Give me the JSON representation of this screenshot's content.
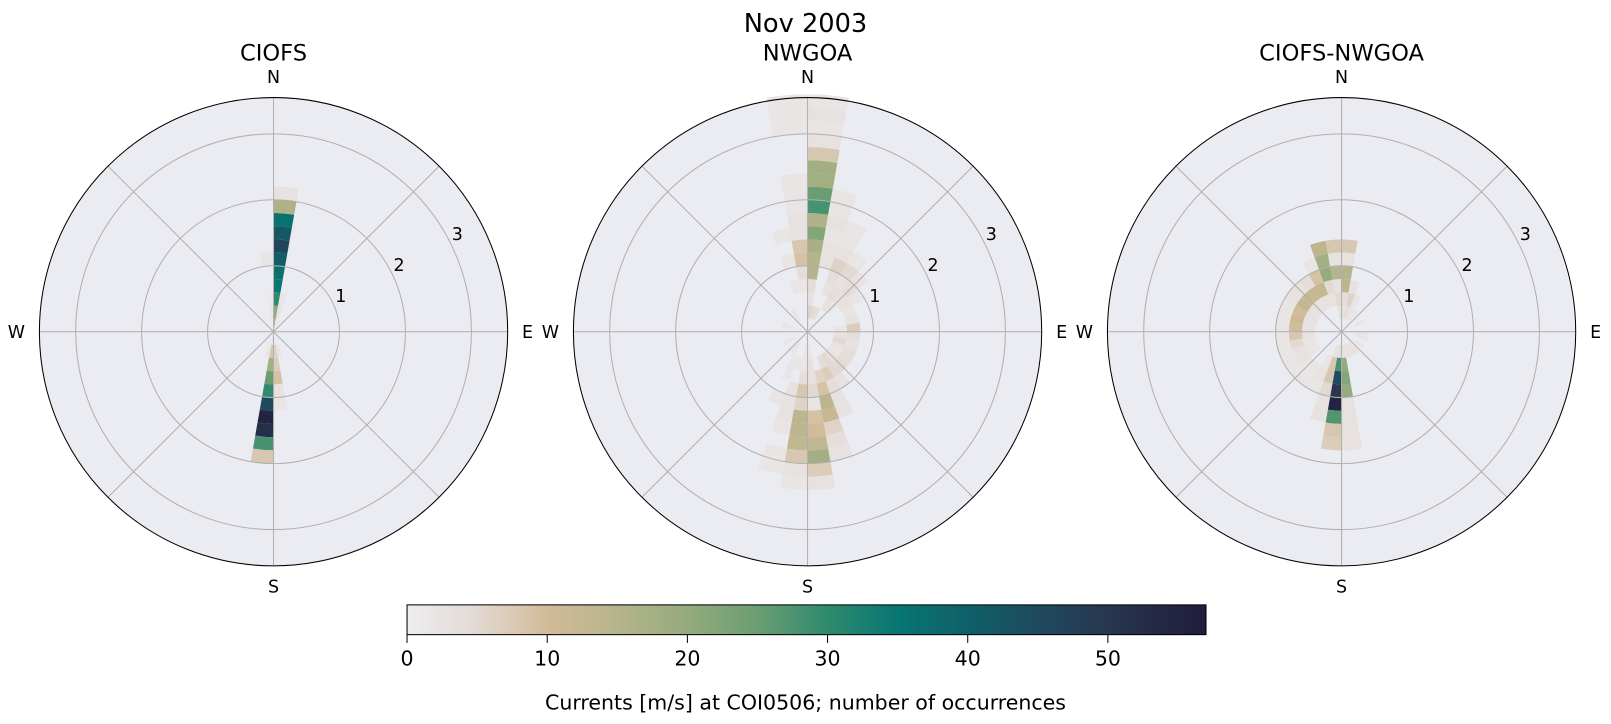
{
  "suptitle": "Nov 2003",
  "colormap": {
    "vmin": 0,
    "vmax": 57,
    "stops": [
      [
        0,
        "#eeedf0"
      ],
      [
        5,
        "#e2d9d3"
      ],
      [
        10,
        "#d2bb98"
      ],
      [
        15,
        "#b6b48c"
      ],
      [
        20,
        "#94ab7d"
      ],
      [
        25,
        "#6a9e72"
      ],
      [
        30,
        "#2f8a6e"
      ],
      [
        35,
        "#087672"
      ],
      [
        40,
        "#0f6068"
      ],
      [
        45,
        "#1e4a5e"
      ],
      [
        50,
        "#283650"
      ],
      [
        57,
        "#201d3b"
      ]
    ],
    "ticks": [
      "0",
      "10",
      "20",
      "30",
      "40",
      "50"
    ],
    "label": "Currents [m/s] at COI0506; number of occurrences"
  },
  "chart_data": [
    {
      "type": "polar-histogram",
      "title": "CIOFS",
      "compass": {
        "n": "N",
        "e": "E",
        "s": "S",
        "w": "W"
      },
      "radial_ticks": [
        "1",
        "2",
        "3"
      ],
      "rlim": [
        0,
        3.55
      ],
      "grid": true,
      "background": "#ebebf2",
      "direction_bin_deg": 10,
      "speed_bin": 0.2,
      "cells_fields": [
        "direction_deg",
        "speed_start",
        "count"
      ],
      "cells": [
        [
          0,
          0.0,
          15
        ],
        [
          0,
          0.2,
          20
        ],
        [
          0,
          0.4,
          30
        ],
        [
          0,
          0.6,
          35
        ],
        [
          0,
          0.8,
          36
        ],
        [
          0,
          1.0,
          41
        ],
        [
          0,
          1.2,
          46
        ],
        [
          0,
          1.4,
          42
        ],
        [
          0,
          1.6,
          36
        ],
        [
          0,
          1.8,
          16
        ],
        [
          0,
          2.0,
          3
        ],
        [
          350,
          1.0,
          2
        ],
        [
          350,
          0.2,
          2
        ],
        [
          10,
          0.4,
          2
        ],
        [
          10,
          0.2,
          3
        ],
        [
          350,
          0.4,
          1
        ],
        [
          180,
          0.0,
          3
        ],
        [
          180,
          0.2,
          8
        ],
        [
          180,
          0.4,
          18
        ],
        [
          180,
          0.6,
          25
        ],
        [
          180,
          0.8,
          30
        ],
        [
          180,
          1.0,
          45
        ],
        [
          180,
          1.2,
          55
        ],
        [
          180,
          1.4,
          52
        ],
        [
          180,
          1.6,
          28
        ],
        [
          180,
          1.8,
          8
        ],
        [
          170,
          0.2,
          6
        ],
        [
          170,
          0.4,
          7
        ],
        [
          170,
          0.6,
          9
        ],
        [
          170,
          0.8,
          3
        ],
        [
          170,
          1.0,
          2
        ],
        [
          190,
          0.2,
          2
        ],
        [
          160,
          0.2,
          2
        ],
        [
          20,
          0.0,
          2
        ]
      ]
    },
    {
      "type": "polar-histogram",
      "title": "NWGOA",
      "compass": {
        "n": "N",
        "e": "E",
        "s": "S",
        "w": "W"
      },
      "radial_ticks": [
        "1",
        "2",
        "3"
      ],
      "rlim": [
        0,
        3.55
      ],
      "grid": true,
      "background": "#ebebf2",
      "direction_bin_deg": 10,
      "speed_bin": 0.2,
      "cells_fields": [
        "direction_deg",
        "speed_start",
        "count"
      ],
      "cells": [
        [
          0,
          0.0,
          2
        ],
        [
          0,
          0.2,
          6
        ],
        [
          0,
          0.4,
          3
        ],
        [
          0,
          0.6,
          4
        ],
        [
          0,
          0.8,
          15
        ],
        [
          0,
          1.0,
          15
        ],
        [
          0,
          1.2,
          17
        ],
        [
          0,
          1.4,
          22
        ],
        [
          0,
          1.6,
          16
        ],
        [
          0,
          1.8,
          28
        ],
        [
          0,
          2.0,
          25
        ],
        [
          0,
          2.2,
          18
        ],
        [
          0,
          2.4,
          18
        ],
        [
          0,
          2.6,
          8
        ],
        [
          0,
          2.8,
          3
        ],
        [
          0,
          3.0,
          2
        ],
        [
          0,
          3.2,
          3
        ],
        [
          0,
          3.4,
          2
        ],
        [
          350,
          0.6,
          2
        ],
        [
          350,
          0.8,
          4
        ],
        [
          350,
          1.0,
          9
        ],
        [
          350,
          1.2,
          8
        ],
        [
          350,
          1.4,
          3
        ],
        [
          350,
          1.6,
          3
        ],
        [
          350,
          1.8,
          2
        ],
        [
          350,
          2.0,
          2
        ],
        [
          350,
          2.2,
          2
        ],
        [
          350,
          3.0,
          2
        ],
        [
          350,
          3.2,
          2
        ],
        [
          350,
          3.4,
          2
        ],
        [
          340,
          0.6,
          2
        ],
        [
          340,
          1.0,
          2
        ],
        [
          340,
          1.4,
          2
        ],
        [
          10,
          0.2,
          5
        ],
        [
          10,
          1.0,
          3
        ],
        [
          10,
          1.2,
          3
        ],
        [
          10,
          1.4,
          2
        ],
        [
          10,
          1.6,
          3
        ],
        [
          10,
          1.8,
          2
        ],
        [
          10,
          2.0,
          2
        ],
        [
          20,
          0.2,
          4
        ],
        [
          20,
          0.6,
          3
        ],
        [
          20,
          0.8,
          4
        ],
        [
          20,
          1.0,
          6
        ],
        [
          20,
          1.2,
          3
        ],
        [
          20,
          1.4,
          2
        ],
        [
          20,
          1.6,
          2
        ],
        [
          30,
          0.4,
          3
        ],
        [
          30,
          0.6,
          4
        ],
        [
          30,
          0.8,
          3
        ],
        [
          30,
          1.0,
          5
        ],
        [
          30,
          1.2,
          2
        ],
        [
          40,
          0.4,
          2
        ],
        [
          40,
          0.6,
          3
        ],
        [
          40,
          0.8,
          4
        ],
        [
          40,
          1.0,
          3
        ],
        [
          50,
          0.6,
          3
        ],
        [
          50,
          0.8,
          2
        ],
        [
          60,
          0.6,
          2
        ],
        [
          70,
          0.6,
          3
        ],
        [
          80,
          0.4,
          2
        ],
        [
          80,
          0.6,
          7
        ],
        [
          90,
          0.4,
          3
        ],
        [
          90,
          0.6,
          4
        ],
        [
          100,
          0.4,
          5
        ],
        [
          100,
          0.6,
          3
        ],
        [
          110,
          0.4,
          3
        ],
        [
          110,
          0.6,
          4
        ],
        [
          120,
          0.4,
          2
        ],
        [
          120,
          0.6,
          4
        ],
        [
          130,
          0.4,
          3
        ],
        [
          130,
          0.6,
          5
        ],
        [
          140,
          0.4,
          5
        ],
        [
          140,
          0.6,
          5
        ],
        [
          140,
          0.8,
          3
        ],
        [
          150,
          0.4,
          4
        ],
        [
          150,
          0.6,
          7
        ],
        [
          150,
          0.8,
          4
        ],
        [
          150,
          1.0,
          3
        ],
        [
          150,
          1.2,
          3
        ],
        [
          160,
          0.6,
          6
        ],
        [
          160,
          0.8,
          9
        ],
        [
          160,
          1.0,
          14
        ],
        [
          160,
          1.2,
          12
        ],
        [
          160,
          1.4,
          6
        ],
        [
          160,
          1.6,
          4
        ],
        [
          160,
          1.8,
          3
        ],
        [
          170,
          0.2,
          2
        ],
        [
          170,
          0.4,
          3
        ],
        [
          170,
          0.6,
          3
        ],
        [
          170,
          0.8,
          5
        ],
        [
          170,
          1.0,
          2
        ],
        [
          170,
          1.2,
          9
        ],
        [
          170,
          1.4,
          10
        ],
        [
          170,
          1.6,
          13
        ],
        [
          170,
          1.8,
          18
        ],
        [
          170,
          2.0,
          7
        ],
        [
          170,
          2.2,
          3
        ],
        [
          180,
          0.2,
          2
        ],
        [
          180,
          0.4,
          2
        ],
        [
          180,
          0.6,
          4
        ],
        [
          180,
          0.8,
          8
        ],
        [
          180,
          1.0,
          6
        ],
        [
          180,
          1.2,
          14
        ],
        [
          180,
          1.4,
          14
        ],
        [
          180,
          1.6,
          13
        ],
        [
          180,
          1.8,
          8
        ],
        [
          180,
          2.0,
          3
        ],
        [
          180,
          2.2,
          2
        ],
        [
          190,
          0.4,
          2
        ],
        [
          190,
          0.8,
          3
        ],
        [
          190,
          1.0,
          3
        ],
        [
          190,
          1.2,
          3
        ],
        [
          190,
          1.4,
          2
        ],
        [
          190,
          1.8,
          2
        ],
        [
          190,
          2.0,
          2
        ],
        [
          200,
          0.4,
          2
        ],
        [
          200,
          0.6,
          2
        ],
        [
          200,
          1.0,
          2
        ],
        [
          210,
          0.2,
          2
        ],
        [
          220,
          0.2,
          2
        ],
        [
          240,
          0.2,
          2
        ],
        [
          280,
          0.2,
          2
        ],
        [
          320,
          0.2,
          2
        ]
      ]
    },
    {
      "type": "polar-histogram",
      "title": "CIOFS-NWGOA",
      "compass": {
        "n": "N",
        "e": "E",
        "s": "S",
        "w": "W"
      },
      "radial_ticks": [
        "1",
        "2",
        "3"
      ],
      "rlim": [
        0,
        3.55
      ],
      "grid": true,
      "background": "#ebebf2",
      "direction_bin_deg": 10,
      "speed_bin": 0.2,
      "cells_fields": [
        "direction_deg",
        "speed_start",
        "count"
      ],
      "cells": [
        [
          0,
          0.2,
          3
        ],
        [
          0,
          0.4,
          4
        ],
        [
          0,
          0.6,
          14
        ],
        [
          0,
          0.8,
          15
        ],
        [
          0,
          1.0,
          3
        ],
        [
          0,
          1.2,
          8
        ],
        [
          350,
          0.2,
          3
        ],
        [
          350,
          0.4,
          5
        ],
        [
          350,
          0.6,
          3
        ],
        [
          350,
          0.8,
          15
        ],
        [
          350,
          1.0,
          3
        ],
        [
          350,
          1.2,
          8
        ],
        [
          340,
          0.4,
          3
        ],
        [
          340,
          0.6,
          5
        ],
        [
          340,
          0.8,
          20
        ],
        [
          340,
          1.0,
          18
        ],
        [
          340,
          1.2,
          14
        ],
        [
          330,
          0.4,
          3
        ],
        [
          330,
          0.6,
          13
        ],
        [
          330,
          0.8,
          9
        ],
        [
          330,
          1.0,
          2
        ],
        [
          320,
          0.4,
          3
        ],
        [
          320,
          0.6,
          12
        ],
        [
          320,
          0.8,
          4
        ],
        [
          310,
          0.4,
          3
        ],
        [
          310,
          0.6,
          12
        ],
        [
          310,
          0.8,
          3
        ],
        [
          300,
          0.4,
          3
        ],
        [
          300,
          0.6,
          13
        ],
        [
          300,
          0.8,
          3
        ],
        [
          290,
          0.4,
          3
        ],
        [
          290,
          0.6,
          10
        ],
        [
          290,
          0.8,
          2
        ],
        [
          280,
          0.4,
          3
        ],
        [
          280,
          0.6,
          11
        ],
        [
          280,
          0.8,
          2
        ],
        [
          270,
          0.4,
          3
        ],
        [
          270,
          0.6,
          10
        ],
        [
          270,
          0.8,
          2
        ],
        [
          260,
          0.4,
          3
        ],
        [
          260,
          0.6,
          8
        ],
        [
          260,
          0.8,
          2
        ],
        [
          250,
          0.4,
          2
        ],
        [
          250,
          0.6,
          5
        ],
        [
          250,
          0.8,
          2
        ],
        [
          240,
          0.4,
          2
        ],
        [
          240,
          0.6,
          3
        ],
        [
          240,
          0.8,
          2
        ],
        [
          230,
          0.4,
          2
        ],
        [
          230,
          0.6,
          3
        ],
        [
          230,
          0.8,
          2
        ],
        [
          220,
          0.6,
          2
        ],
        [
          220,
          0.8,
          2
        ],
        [
          210,
          0.6,
          2
        ],
        [
          210,
          0.8,
          2
        ],
        [
          200,
          0.4,
          2
        ],
        [
          200,
          0.6,
          3
        ],
        [
          200,
          0.8,
          2
        ],
        [
          10,
          0.2,
          4
        ],
        [
          10,
          0.4,
          6
        ],
        [
          10,
          0.6,
          3
        ],
        [
          20,
          0.2,
          2
        ],
        [
          20,
          0.4,
          2
        ],
        [
          30,
          0.2,
          2
        ],
        [
          60,
          0.2,
          2
        ],
        [
          90,
          0.2,
          2
        ],
        [
          100,
          0.2,
          2
        ],
        [
          120,
          0.2,
          2
        ],
        [
          140,
          0.2,
          3
        ],
        [
          150,
          0.2,
          3
        ],
        [
          160,
          0.2,
          3
        ],
        [
          180,
          0.2,
          4
        ],
        [
          180,
          0.4,
          28
        ],
        [
          180,
          0.6,
          45
        ],
        [
          180,
          0.8,
          50
        ],
        [
          180,
          1.0,
          55
        ],
        [
          180,
          1.2,
          27
        ],
        [
          180,
          1.4,
          8
        ],
        [
          180,
          1.6,
          7
        ],
        [
          170,
          0.2,
          3
        ],
        [
          170,
          0.4,
          20
        ],
        [
          170,
          0.6,
          22
        ],
        [
          170,
          0.8,
          20
        ],
        [
          170,
          1.0,
          3
        ],
        [
          170,
          1.2,
          3
        ],
        [
          170,
          1.4,
          3
        ],
        [
          170,
          1.6,
          3
        ],
        [
          190,
          0.2,
          3
        ],
        [
          190,
          0.4,
          8
        ],
        [
          190,
          0.6,
          8
        ],
        [
          190,
          0.8,
          5
        ],
        [
          190,
          1.0,
          3
        ],
        [
          190,
          1.2,
          3
        ]
      ]
    }
  ]
}
